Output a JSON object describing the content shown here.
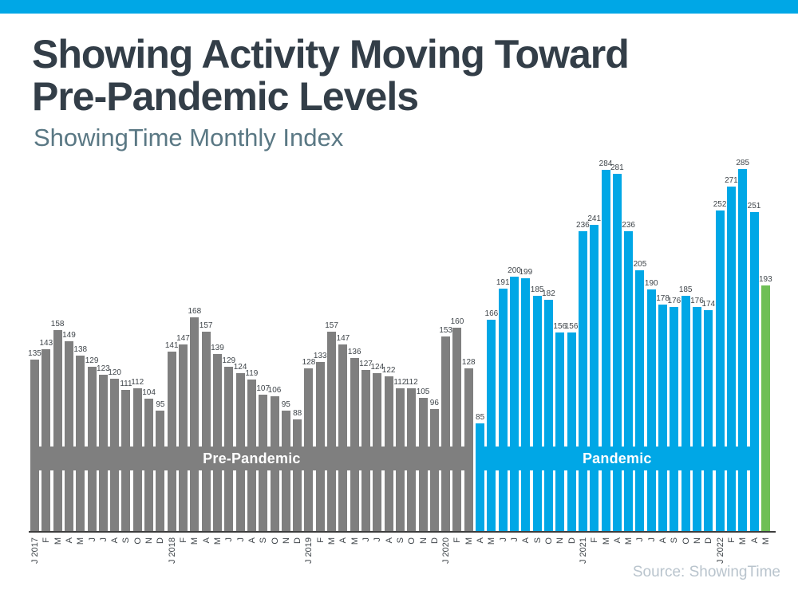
{
  "header": {
    "title_line1": "Showing Activity Moving Toward",
    "title_line2": "Pre-Pandemic Levels",
    "subtitle": "ShowingTime Monthly Index"
  },
  "source_note": "Source: ShowingTime",
  "colors": {
    "accent_blue": "#00a7e6",
    "pre_pandemic_gray": "#7f7f7f",
    "pandemic_blue": "#00a7e6",
    "latest_green": "#6fbf56",
    "title_text": "#333e48",
    "subtitle_text": "#5a7884",
    "label_text": "#3f454a",
    "band_text": "#ffffff",
    "axis_line": "#3d3d3d",
    "source_text": "#b9c4cd"
  },
  "chart_data": {
    "type": "bar",
    "title": "Showing Activity Moving Toward Pre-Pandemic Levels",
    "subtitle": "ShowingTime Monthly Index",
    "xlabel": "",
    "ylabel": "ShowingTime Monthly Index value",
    "ylim": [
      0,
      298
    ],
    "grid": false,
    "legend_position": "none",
    "value_labels_shown": true,
    "x": [
      "J 2017",
      "F",
      "M",
      "A",
      "M",
      "J",
      "J",
      "A",
      "S",
      "O",
      "N",
      "D",
      "J 2018",
      "F",
      "M",
      "A",
      "M",
      "J",
      "J",
      "A",
      "S",
      "O",
      "N",
      "D",
      "J 2019",
      "F",
      "M",
      "A",
      "M",
      "J",
      "J",
      "A",
      "S",
      "O",
      "N",
      "D",
      "J 2020",
      "F",
      "M",
      "A",
      "M",
      "J",
      "J",
      "A",
      "S",
      "O",
      "N",
      "D",
      "J 2021",
      "F",
      "M",
      "A",
      "M",
      "J",
      "J",
      "A",
      "S",
      "O",
      "N",
      "D",
      "J 2022",
      "F",
      "M",
      "A",
      "M"
    ],
    "values": [
      135,
      143,
      158,
      149,
      138,
      129,
      123,
      120,
      111,
      112,
      104,
      95,
      141,
      147,
      168,
      157,
      139,
      129,
      124,
      119,
      107,
      106,
      95,
      88,
      128,
      133,
      157,
      147,
      136,
      127,
      124,
      122,
      112,
      112,
      105,
      96,
      153,
      160,
      128,
      85,
      166,
      191,
      200,
      199,
      185,
      182,
      156,
      156,
      236,
      241,
      284,
      281,
      236,
      205,
      190,
      178,
      176,
      185,
      176,
      174,
      252,
      271,
      285,
      251,
      193
    ],
    "segments": [
      {
        "label": "Pre-Pandemic",
        "start": 0,
        "end": 38,
        "color_key": "pre_pandemic_gray",
        "band": true
      },
      {
        "label": "Pandemic",
        "start": 39,
        "end": 63,
        "color_key": "pandemic_blue",
        "band": true
      },
      {
        "label": "",
        "start": 64,
        "end": 64,
        "color_key": "latest_green",
        "band": false
      }
    ]
  }
}
